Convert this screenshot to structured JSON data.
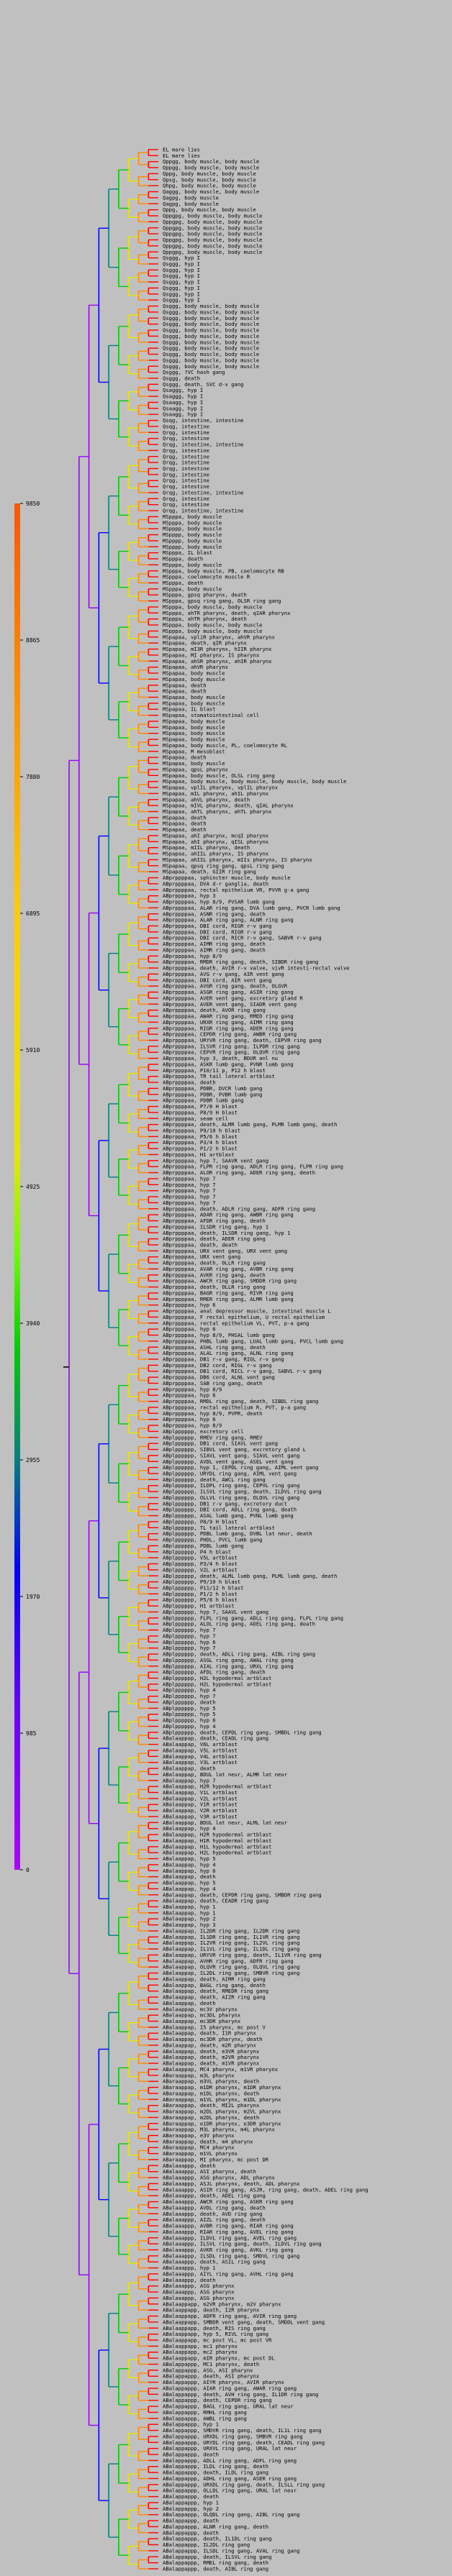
{
  "colors": {
    "background": "#c0c0c0",
    "branch_purple": "#9900ff",
    "branch_blue": "#0000ff",
    "branch_teal": "#008080",
    "branch_green": "#00cc00",
    "branch_yellow": "#e6e600",
    "branch_orange": "#ff8800",
    "branch_red": "#ff0000",
    "branch_black": "#000000",
    "gradient_top": "#ff5500",
    "gradient_bottom": "#b000ff"
  },
  "scale": {
    "ticks": [
      "9850",
      "8865",
      "7880",
      "6895",
      "5910",
      "4925",
      "3940",
      "2955",
      "1970",
      "985",
      "0"
    ]
  },
  "leaves": [
    "EL mare lies",
    "EL mare lies",
    "Qppgg, body muscle, body muscle",
    "Qppgg, body muscle, body muscle",
    "Qppg, body muscle, body muscle",
    "Qpsg, body muscle, body muscle",
    "Qhpg, body muscle, body muscle",
    "Qaggg, body muscle, body muscle",
    "Qagpg, body muscle",
    "Qagpg, body muscle",
    "Qppg, body muscle, body muscle",
    "Qppgpg, body muscle, body muscle",
    "Qppgpg, body muscle, body muscle",
    "Qppgpg, body muscle, body muscle",
    "Qppgpg, body muscle, body muscle",
    "Qppgpg, body muscle, body muscle",
    "Qppgpg, body muscle, body muscle",
    "Qppgpg, body muscle, body muscle",
    "Qsggg, hyp I",
    "Qsggg, hyp I",
    "Qsggg, hyp I",
    "Qsggg, hyp I",
    "Qsggg, hyp I",
    "Qsggg, hyp I",
    "Qsggg, hyp I",
    "Qsggg, hyp I",
    "Qsggg, body muscle, body muscle",
    "Qsggg, body muscle, body muscle",
    "Qsggg, body muscle, body muscle",
    "Qsggg, body muscle, body muscle",
    "Qsggg, body muscle, body muscle",
    "Qsggg, body muscle, body muscle",
    "Qsggg, body muscle, body muscle",
    "Qsggg, body muscle, body muscle",
    "Qsggg, body muscle, body muscle",
    "Qsggg, body muscle, body muscle",
    "Qsggg, body muscle, body muscle",
    "Qsggg, ?VC hash gang",
    "Qsggg, death",
    "Qsggg, death, SVC d-v gang",
    "Qsaggg, hyp I",
    "Qsaggg, hyp I",
    "Qsaagg, hyp I",
    "Qsaagg, hyp I",
    "Qsaagg, hyp I",
    "Qsqg, intestine, intestine",
    "Qsqg, intestine",
    "Qrqg, intestine",
    "Qrqg, intestine",
    "Qrqg, intestine, intestine",
    "Qrqg, intestine",
    "Qrqg, intestine",
    "Qrqg, intestine",
    "Qrqg, intestine",
    "Qrqg, intestine",
    "Qrqg, intestine",
    "Qrqg, intestine",
    "Qrqg, intestine, intestine",
    "Qrqg, intestine",
    "Qrqg, intestine",
    "Qrqg, intestine, intestine",
    "MSpppa, body muscle",
    "MSpppa, body muscle",
    "MSpppp, body muscle",
    "MSpppp, body muscle",
    "MSpppp, body muscle",
    "MSpppp, body muscle",
    "MSpppa, IL blast",
    "MSpppa, death",
    "MSpppa, body muscle",
    "MSpppa, body muscle, PB, coelomocyte RB",
    "MSpppa, coelomocyte muscle R",
    "MSpppa, death",
    "MSpppa, body muscle",
    "MSpppa, gpsq pharynx, death",
    "MSpppa, gpsq ring gang, OLSR ring gang",
    "MSpppa, body muscle, body muscle",
    "MSpppa, ahTR pharynx, death, qIAR pharynx",
    "MSpppa, ahTR pharynx, death",
    "MSpppa, body muscle, body muscle",
    "MSpppa, body muscle, body muscle",
    "MSpapaa, vpliR pharynx, ahVR pharynx",
    "MSpapaa, death, qIR pharynx",
    "MSpapaa, mI3R pharynx, hIIR pharynx",
    "MSpapaa, MI pharynx, IS pharynx",
    "MSpapaa, ahSR pharynx, ahIR pharynx",
    "MSpapaa, ahVR pharynx",
    "MSpapaa, body muscle",
    "MSpapaa, body muscle",
    "MSpapaa, death",
    "MSpapaa, death",
    "MSpapaa, body muscle",
    "MSpapaa, body muscle",
    "MSpapaa, IL blast",
    "MSpapaa, stomatointestinal cell",
    "MSpapaa, body muscle",
    "MSpapaa, body muscle",
    "MSpapaa, body muscle",
    "MSpapaa, body muscle",
    "MSpapaa, body muscle, PL, coelomocyte RL",
    "MSpapaa, M mesoblast",
    "MSpapaa, death",
    "MSpapaa, body muscle",
    "MSpapaa, qpsL pharynx",
    "MSpapaa, body muscle, OLSL ring gang",
    "MSpapaa, body muscle, body muscle, body muscle, body muscle",
    "MSpapaa, vplIL pharynx, vplIL pharynx",
    "MSpapaa, mIL pharynx, ahIL pharynx",
    "MSpapaa, ahVL pharynx, death",
    "MSpapaa, mIVL pharynx, death, qIAL pharynx",
    "MSpapaa, ahTL pharynx, ahTL pharynx",
    "MSpapaa, death",
    "MSpapaa, death",
    "MSpapaa, death",
    "MSpapaa, ahI pharynx, mcqI pharynx",
    "MSpapaa, ahI pharynx, qISL pharynx",
    "MSpapaa, mIIL pharynx, death",
    "MSpapaa, ahIIL pharynx, IS pharynx",
    "MSpapaa, ahIIL pharynx, mIIs pharynx, IS pharynx",
    "MSpapaa, qpsq ring gang, qpsL ring gang",
    "MSpapaa, death, GIIR ring gang",
    "ABprppppaa, sphincter muscle, body muscle",
    "ABprppppaa, DVA d-r ganglia, death",
    "ABprppppaa, rectal epithelium VR, PVVR g-a gang",
    "ABprppppaa, hyp 3",
    "ABprppppaa, hyp 8/9, PVSAR lumb gang",
    "ABprppppaa, ALAR ring gang, DVA lumb gang, PVCR lumb gang",
    "ABprppppaa, ASNR ring gang, death",
    "ABprppppaa, ALAR ring gang, ALNR ring gang",
    "ABprppppaa, DBI cord, RIGR r-v gang",
    "ABprppppaa, DBI cord, RIGR r-v gang",
    "ABprppppaa, DBI cord, RICR r-v gang, SABVR r-v gang",
    "ABprppppaa, AIMR ring gang, death",
    "ABprppppaa, AIMR ring gang, death",
    "ABprppppaa, hyp 8/9",
    "ABprppppaa, RMDR ring gang, death, SIBDR ring gang",
    "ABprppppaa, death, AVIR r-v valve, vivR intesti-rectal valve",
    "ABprppppaa, AVG r-v gang, AIR vent gang",
    "ABprppppaa, DBI cord, AIR vent gang",
    "ABprppppaa, AVGR ring gang, death, OLGVR",
    "ABprppppaa, ASGR ring gang, ASIR ring gang",
    "ABprppppaa, AVER vent gang, excretory gland R",
    "ABprppppaa, AVER vent gang, SIADR vent gang",
    "ABprppppaa, death, AVOR ring gang",
    "ABprppppaa, AWAR ring gang, RMED ring gang",
    "ABprppppaa, URXR ring gang, AIMR ring gang",
    "ABprppppaa, RIGR ring gang, ADER ring gang",
    "ABprppppaa, CEPDR ring gang, AWBR ring gang",
    "ABprppppaa, URYVR ring gang, death, CEPVR ring gang",
    "ABprppppaa, ILSVR ring gang, ILPDR ring gang",
    "ABprppppaa, CEPVR ring gang, OLQVR ring gang",
    "ABprppppaa, hyp 3, death, BDUR anl nu",
    "ABprppppaa, ASKR lumb gang, PVNR lumb gang",
    "ABprppppaa, P10/11 p, P12 h blast",
    "ABprppppaa, TR tail lateral artblast",
    "ABprppppaa, death",
    "ABprppppaa, PDBR, DVCR lumb gang",
    "ABprppppaa, PDBR, PVBR lumb gang",
    "ABprppppaa, PDBR lumb gang",
    "ABprppppaa, P7/8 H blast",
    "ABprppppaa, P8/9 H blast",
    "ABprppppaa, seam cell",
    "ABprppppaa, death, ALMR lumb gang, PLMR lumb gang, death",
    "ABprppppaa, P9/10 h blast",
    "ABprppppaa, P5/6 h blast",
    "ABprppppaa, P3/4 h blast",
    "ABprppppaa, P1/2 h blast",
    "ABprppppaa, H1 artblast",
    "ABprppppaa, hyp 7, SAAVR vent gang",
    "ABprppppaa, FLPR ring gang, ADLR ring gang, FLPR ring gang",
    "ABprppppaa, ALOR ring gang, ADER ring gang, death",
    "ABprppppaa, hyp 7",
    "ABprppppaa, hyp 7",
    "ABprppppaa, hyp 7",
    "ABprppppaa, hyp 7",
    "ABprppppaa, hyp 7",
    "ABprppppaa, death, ADLR ring gang, ADFR ring gang",
    "ABprppppaa, ADAR ring gang, AWBR ring gang",
    "ABprppppaa, AFDR ring gang, death",
    "ABprppppaa, ILSDR ring gang, hyp 1",
    "ABprppppaa, death, ILSDR ring gang, hyp 1",
    "ABprppppaa, death, ADER ring gang",
    "ABprppppaa, death, death",
    "ABprppppaa, URX vent gang, URX vent gang",
    "ABprppppaa, URX vent gang",
    "ABprppppaa, death, OLLR ring gang",
    "ABprppppaa, AVAR ring gang, AVBR ring gang",
    "ABprppppaa, AVKR ring gang, death",
    "ABprppppaa, AWCR ring gang, SMDDR ring gang",
    "ABprppppaa, death, OLLR ring gang",
    "ABprppppaa, BAGR ring gang, RIVR ring gang",
    "ABprppppaa, RMER ring gang, ALMR lumb gang",
    "ABprppppaa, hyp 6",
    "ABprppppaa, anal depressor muscle, intestinal muscle L",
    "ABprppppaa, F rectal epithelium, U rectal epithelium",
    "ABprppppaa, rectal epithelium VL, PVT, p-a gang",
    "ABprppppaa, hyp 6",
    "ABprppppaa, hyp 8/9, PHSAL lumb gang",
    "ABprppppaa, PHBL lumb gang, LUAL lumb gang, PVCL lumb gang",
    "ABprppppaa, ASHL ring gang, death",
    "ABprppppaa, ALAL ring gang, ALNL ring gang",
    "ABprppppaa, DB1 r-v gang, RIGL r-v gang",
    "ABprppppaa, DB2 cord, RIGL r-v gang",
    "ABprppppaa, DB1 cord, RICL r-v gang, SABVL r-v gang",
    "ABprppppaa, DB6 cord, ALNL vent gang",
    "ABprppppaa, SAB ring gang, death",
    "ABprppppaa, hyp 8/9",
    "ABprppppaa, hyp 6",
    "ABprppppaa, RMDL ring gang, death, SIBDL ring gang",
    "ABprppppaa, rectal epithelium R, PVT, p-a gang",
    "ABprppppaa, hyp 8/9, PVPR, death",
    "ABprppppaa, hyp 6",
    "ABprppppaa, hyp 8/9",
    "ABplpppppp, excretory cell",
    "ABplpppppp, RMEV ring gang, RMEV",
    "ABplpppppp, DB1 cord, SIAVL vent gang",
    "ABplpppppp, SIBVL vent gang, excretory gland L",
    "ABplpppppp, SIAVL vent gang, SIAVL vent gang",
    "ABplpppppp, AVDL vent gang, ASEL vent gang",
    "ABplpppppp, hyp 1, CEPDL ring gang, AIML vent gang",
    "ABplpppppp, URYDL ring gang, AIML vent gang",
    "ABplpppppp, death, AWCL ring gang",
    "ABplpppppp, ILDPL ring gang, CEPVL ring gang",
    "ABplpppppp, ILSVL ring gang, death, ILDVL ring gang",
    "ABplpppppp, OLLVL ring gang, OLQVL ring gang",
    "ABplpppppp, DB1 r-v gang, excretory duct",
    "ABplpppppp, DBI cord, ADLL ring gang, death",
    "ABplpppppp, ASAL lumb gang, PVNL lumb gang",
    "ABplpppppp, P8/9 H blast",
    "ABplpppppp, TL tail lateral artblast",
    "ABplpppppp, PDBL lumb gang, DVBL lat neur, death",
    "ABplpppppp, PHDL, PVCL lumb gang",
    "ABplpppppp, PDBL lumb gang",
    "ABplpppppp, P4 h blast",
    "ABplpppppp, V5L artblast",
    "ABplpppppp, P3/4 h blast",
    "ABplpppppp, V2L artblast",
    "ABplpppppp, death, ALML lumb gang, PLML lumb gang, death",
    "ABplpppppp, P9/10 h blast",
    "ABplpppppp, P11/12 h blast",
    "ABplpppppp, P1/2 h blast",
    "ABplpppppp, P5/6 h blast",
    "ABplpppppp, H1 artblast",
    "ABplpppppp, hyp 7, SAAVL vent gang",
    "ABplpppppp, FLPL ring gang, ADLL ring gang, FLPL ring gang",
    "ABplpppppp, ALOL ring gang, ADEL ring gang, death",
    "ABplpppppp, hyp 7",
    "ABplpppppp, hyp 7",
    "ABplpppppp, hyp 6",
    "ABplpppppp, hyp 7",
    "ABplpppppp, death, ADLL ring gang, AIBL ring gang",
    "ABplpppppp, ASGL ring gang, AWAL ring gang",
    "ABplpppppp, AIAL ring gang, URXL ring gang",
    "ABplpppppp, AFDL ring gang, death",
    "ABplpppppp, H2L hypodermal artblast",
    "ABplpppppp, H2L hypodermal artblast",
    "ABplpppppp, hyp 4",
    "ABplpppppp, hyp 7",
    "ABplpppppp, death",
    "ABplpppppp, hyp 5",
    "ABplpppppp, hyp 5",
    "ABplpppppp, hyp 6",
    "ABplpppppp, hyp 4",
    "ABplpppppp, death, CEPDL ring gang, SMBDL ring gang",
    "ABalaappap, death, CEADL ring gang",
    "ABalaappap, V6L artblast",
    "ABalaappap, V5L artblast",
    "ABalaappap, V4L artblast",
    "ABalaappap, V3L artblast",
    "ABalaappap, death",
    "ABalaappap, BDUL lat neur, ALMR lat neur",
    "ABalaappap, hyp 7",
    "ABalaappap, H2R hypodermal artblast",
    "ABalaappap, V1L artblast",
    "ABalaappap, V2L artblast",
    "ABalaappap, V1R artblast",
    "ABalaappap, V2R artblast",
    "ABalaappap, V3R artblast",
    "ABalaappap, BDUL lat neur, ALML lat neur",
    "ABalaappap, hyp 4",
    "ABalaappap, H2R hypodermal artblast",
    "ABalaappap, H1R hypodermal artblast",
    "ABalaappap, H1L hypodermal artblast",
    "ABalaappap, H2L hypodermal artblast",
    "ABalaappap, hyp 5",
    "ABalaappap, hyp 4",
    "ABalaappap, hyp 6",
    "ABalaappap, death",
    "ABalaappap, hyp 5",
    "ABalaappap, hyp 4",
    "ABalaappap, death, CEPDR ring gang, SMBDR ring gang",
    "ABalaappap, death, CEADR ring gang",
    "ABalaappap, hyp 1",
    "ABalaappap, hyp 1",
    "ABalaappap, hyp 2",
    "ABalaappap, hyp 3",
    "ABalaappap, IL2DR ring gang, IL2DR ring gang",
    "ABalaappap, IL1DR ring gang, IL1VR ring gang",
    "ABalaappap, IL2VR ring gang, IL2VL ring gang",
    "ABalaappap, IL1VL ring gang, IL1DL ring gang",
    "ABalaappap, URYVR ring gang, death, IL1VR ring gang",
    "ABalaappap, AVHR ring gang, ADFR ring gang",
    "ABalaappap, OLQVR ring gang, OLQVL ring gang",
    "ABalaappap, IL2DL ring gang, SMBVR ring gang",
    "ABalaappap, death, AIMR ring gang",
    "ABalaappap, BAGL ring gang, death",
    "ABalaappap, death, RMEDR ring gang",
    "ABalaappap, death, AIZR ring gang",
    "ABalaappap, death",
    "ABalaappap, mc3V pharynx",
    "ABalaappap, mc3DL pharynx",
    "ABalaappap, mc3DR pharynx",
    "ABalaappap, I5 pharynx, mc post V",
    "ABalaappap, death, I1R pharynx",
    "ABalaappap, mc3DR pharynx, death",
    "ABalaappap, death, m2R pharynx",
    "ABalaappap, death, e3VR pharynx",
    "ABalaappap, death, m2VR pharynx",
    "ABalaappap, death, m1VR pharynx",
    "ABalaappap, MC4 pharynx, m1VR pharynx",
    "ABaraappap, m3L pharynx",
    "ABaraappap, m3VL pharynx, death",
    "ABaraappap, m1DR pharynx, m1DR pharynx",
    "ABaraappap, m1DL pharynx, death",
    "ABaraappap, m1VL pharynx, m1DL pharynx",
    "ABaraappap, death, MI2L pharynx",
    "ABaraappap, m2DL pharynx, m2VL pharynx",
    "ABaraappap, m2DL pharynx, death",
    "ABaraappap, e1DR pharynx, e3DR pharynx",
    "ABaraappap, M3L pharynx, m4L pharynx",
    "ABaraappap, e3V pharynx",
    "ABaraappap, death, m4 pharynx",
    "ABaraappap, MC4 pharynx",
    "ABaraappap, m1VL pharynx",
    "ABaraappap, MI pharynx, mc post DR",
    "ABalaaappp, death",
    "ABalaaappp, ASI pharynx, death",
    "ABalaaappp, ASG pharynx, ADL pharynx",
    "ABalaaappp, ASJL pharynx, death, ADL pharynx",
    "ABalaaappp, ASIR ring gang, ASJR, ring gang, death, ADEL ring gang",
    "ABalaaappp, death, ADEL ring gang",
    "ABalaaappp, AWCR ring gang, ASKR ring gang",
    "ABalaaappp, AVDL ring gang, death",
    "ABalaaappp, death, AVD ring gang",
    "ABalaaappp, AIZL ring gang, death",
    "ABalaaappp, AVBR ring gang, RIAR ring gang",
    "ABalaaappp, RIAR ring gang, AVEL ring gang",
    "ABalaaappp, ILDVL ring gang, AVEL ring gang",
    "ABalaaappp, ILSVL ring gang, death, ILDVL ring gang",
    "ABalaaappp, AVKR ring gang, AVKL ring gang",
    "ABalaaappp, ILSDL ring gang, SMDVL ring gang",
    "ABalaaappp, death, ASIL ring gang",
    "ABalaaappp, hyp 1",
    "ABalaaappp, AIYL ring gang, AVHL ring gang",
    "ABalaaappp, death",
    "ABalaaappp, ASG pharynx",
    "ABalaaappp, ASG pharynx",
    "ABalaaappp, ASG pharynx",
    "ABalaappapp, m2VR pharynx, m2V pharynx",
    "ABalaappapp, death, I2R pharynx",
    "ABalaappapp, ADFR ring gang, AVIR ring gang",
    "ABalaappapp, SMBDR vent gang, death, SMDDL vent gang",
    "ABalaappapp, death, RIS ring gang",
    "ABalaappapp, hyp 5, RIVL ring gang",
    "ABalaappapp, mc post VL, mc post VR",
    "ABalaappapp, mc1 pharynx",
    "ABalaappapp, mc2 pharynx",
    "ABalaappapp, mIR pharynx, mc post DL",
    "ABalappappp, MC1 pharynx, death",
    "ABalappappp, ASG, ASI pharynx",
    "ABalappappp, death, ASI pharynx",
    "ABalappappp, AIYR pharynx, AVIR pharynx",
    "ABalappappp, AIAR ring gang, AWAR ring gang",
    "ABalappappp, death, AVH ring gang, IL1DR ring gang",
    "ABalappappp, death, CEPDR ring gang",
    "ABalappappp, BAGL ring gang, URAL lat neur",
    "ABalappappp, RMHL ring gang",
    "ABalappappp, AWBL ring gang",
    "ABalappappp, hyp 1",
    "ABalappappp, SMDVR ring gang, death, IL1L ring gang",
    "ABalappappp, URXDL ring gang, SMBVR ring gang",
    "ABalappappp, URYDL ring gang, death, CEADL ring gang",
    "ABalappappp, URXVL ring gang, URAL lat neur",
    "ABalappappp, death",
    "ABalappappp, ADLL ring gang, ADFL ring gang",
    "ABalappappp, ILDL ring gang, death",
    "ABalappappp, death, ILDL ring gang",
    "ABalappappp, ADHL ring gang, ASER ring gang",
    "ABalappappp, URXDL ring gang, death, ILSLL ring gang",
    "ABalappappp, OLLDL ring gang, URAL lat neur",
    "ABalappappp, death",
    "ABalappappp, hyp 1",
    "ABalappappp, hyp 2",
    "ABalappappp, OLQDL ring gang, AIBL ring gang",
    "ABalappappp, death",
    "ABalappappp, ALNR ring gang, death",
    "ABalappappp, death",
    "ABalappappp, death, IL1DL ring gang",
    "ABalappappp, IL2DL ring gang",
    "ABalappappp, ILSDL ring gang, AVAL ring gang",
    "ABalappappp, death, ILSVL ring gang",
    "ABalappappp, RMEL ring gang, death",
    "ABalappappp, death, AIBL ring gang"
  ]
}
